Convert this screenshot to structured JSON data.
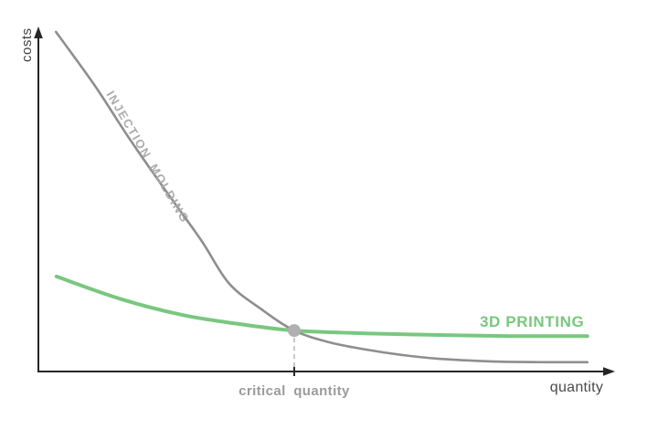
{
  "chart_data": {
    "type": "line",
    "title": "",
    "xlabel": "quantity",
    "ylabel": "costs",
    "value_scale": "conceptual - axes have no numeric ticks; points are normalized 0-1 fractions of plot area",
    "legend_position": "labels drawn inline next to curves",
    "grid": false,
    "series": [
      {
        "name": "INJECTION MOLDING",
        "color": "#8e8e8e",
        "label_color": "#ababab",
        "stroke_width": 2.6,
        "points": [
          [
            0.031,
            0.987
          ],
          [
            0.099,
            0.833
          ],
          [
            0.159,
            0.682
          ],
          [
            0.223,
            0.531
          ],
          [
            0.288,
            0.382
          ],
          [
            0.337,
            0.257
          ],
          [
            0.393,
            0.183
          ],
          [
            0.453,
            0.119
          ],
          [
            0.515,
            0.085
          ],
          [
            0.579,
            0.064
          ],
          [
            0.644,
            0.048
          ],
          [
            0.709,
            0.037
          ],
          [
            0.806,
            0.029
          ],
          [
            0.903,
            0.027
          ],
          [
            0.972,
            0.027
          ]
        ]
      },
      {
        "name": "3D PRINTING",
        "color": "#79c77f",
        "label_color": "#79c77f",
        "stroke_width": 4,
        "points": [
          [
            0.032,
            0.276
          ],
          [
            0.147,
            0.21
          ],
          [
            0.256,
            0.164
          ],
          [
            0.356,
            0.138
          ],
          [
            0.453,
            0.119
          ],
          [
            0.579,
            0.111
          ],
          [
            0.709,
            0.106
          ],
          [
            0.838,
            0.103
          ],
          [
            0.972,
            0.103
          ]
        ]
      }
    ],
    "annotations": {
      "critical_quantity": {
        "label": "critical quantity",
        "x": 0.453,
        "y": 0.119,
        "marker": "gray dot at curve intersection",
        "dashed_drop_line": true
      }
    }
  },
  "colors": {
    "axis": "#262626",
    "axis_text_dark": "#3f3f3f",
    "axis_text": "#4a4a4a",
    "dot": "#b0b0b0",
    "dashed": "#c6c6c6",
    "critical_text": "#9b9b9b",
    "background": "#ffffff"
  }
}
